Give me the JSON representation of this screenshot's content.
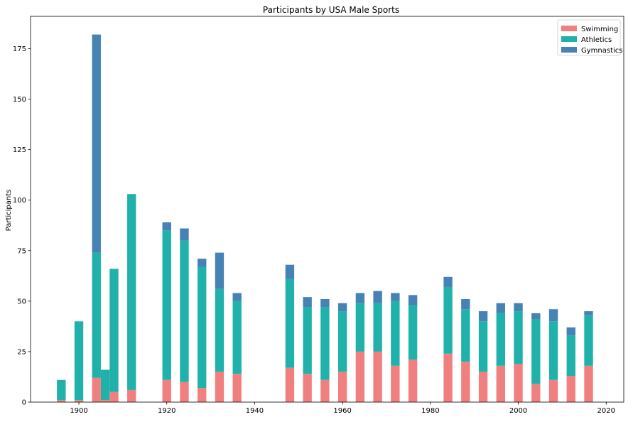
{
  "chart_data": {
    "type": "bar",
    "stacked": true,
    "title": "Participants by USA Male Sports",
    "xlabel": "",
    "ylabel": "Participants",
    "xlim": [
      1889,
      2024
    ],
    "ylim": [
      0,
      191
    ],
    "bar_width_years": 2,
    "x_ticks": [
      1900,
      1920,
      1940,
      1960,
      1980,
      2000,
      2020
    ],
    "y_ticks": [
      0,
      25,
      50,
      75,
      100,
      125,
      150,
      175
    ],
    "legend_position": "top-right",
    "grid": false,
    "x": [
      1896,
      1900,
      1904,
      1906,
      1908,
      1912,
      1920,
      1924,
      1928,
      1932,
      1936,
      1948,
      1952,
      1956,
      1960,
      1964,
      1968,
      1972,
      1976,
      1984,
      1988,
      1992,
      1996,
      2000,
      2004,
      2008,
      2012,
      2016
    ],
    "series": [
      {
        "name": "Swimming",
        "color": "#f08080",
        "values": [
          1,
          1,
          12,
          1,
          5,
          6,
          11,
          10,
          7,
          15,
          14,
          17,
          14,
          11,
          15,
          25,
          25,
          18,
          21,
          24,
          20,
          15,
          18,
          19,
          9,
          11,
          13,
          18
        ]
      },
      {
        "name": "Athletics",
        "color": "#20b2aa",
        "values": [
          10,
          39,
          62,
          15,
          61,
          97,
          74,
          70,
          60,
          41,
          36,
          44,
          33,
          36,
          30,
          24,
          24,
          32,
          27,
          33,
          26,
          25,
          26,
          26,
          32,
          29,
          20,
          25
        ]
      },
      {
        "name": "Gymnastics",
        "color": "#4682b4",
        "values": [
          0,
          0,
          108,
          0,
          0,
          0,
          4,
          6,
          4,
          18,
          4,
          7,
          5,
          4,
          4,
          5,
          6,
          4,
          5,
          5,
          5,
          5,
          5,
          4,
          3,
          6,
          4,
          2
        ]
      }
    ]
  }
}
